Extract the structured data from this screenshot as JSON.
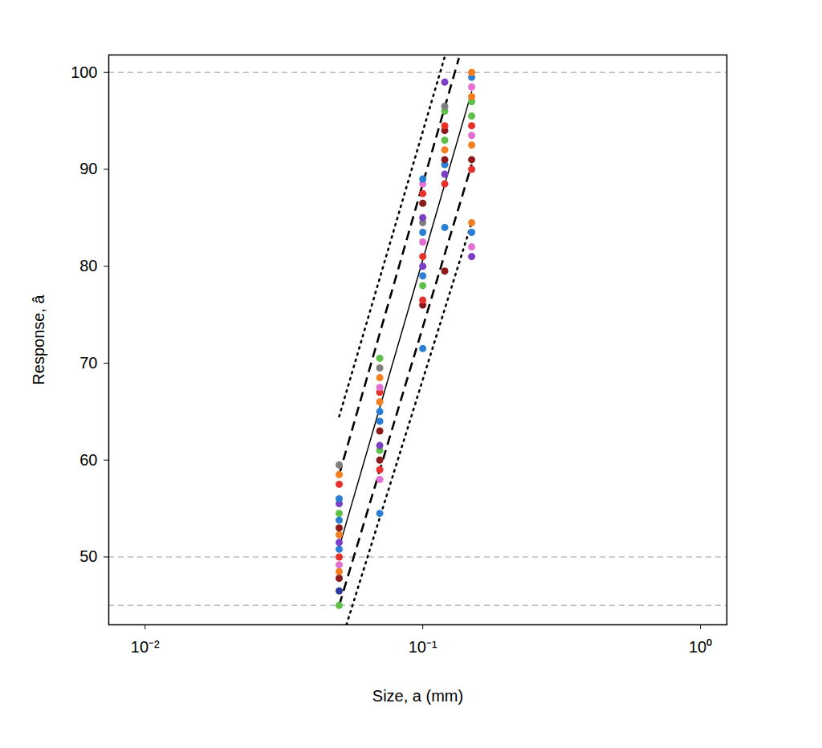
{
  "chart_data": {
    "type": "scatter",
    "x_label": "Size, a (mm)",
    "y_label": "Response, â",
    "log": "x",
    "xlim": [
      0.0074,
      1.245
    ],
    "ylim": [
      43,
      101.8
    ],
    "xticks": [
      {
        "value": 0.01,
        "label": "10⁻²"
      },
      {
        "value": 0.1,
        "label": "10⁻¹"
      },
      {
        "value": 1,
        "label": "10⁰"
      }
    ],
    "yticks": [
      50,
      60,
      70,
      80,
      90,
      100
    ],
    "hlines": [
      45,
      50,
      100
    ],
    "points": {
      "marker": "circle",
      "x": [
        0.05,
        0.05,
        0.05,
        0.05,
        0.05,
        0.05,
        0.05,
        0.05,
        0.05,
        0.05,
        0.05,
        0.05,
        0.05,
        0.05,
        0.05,
        0.05,
        0.05,
        0.07,
        0.07,
        0.07,
        0.07,
        0.07,
        0.07,
        0.07,
        0.07,
        0.07,
        0.07,
        0.07,
        0.07,
        0.07,
        0.07,
        0.07,
        0.1,
        0.1,
        0.1,
        0.1,
        0.1,
        0.1,
        0.1,
        0.1,
        0.1,
        0.1,
        0.1,
        0.1,
        0.1,
        0.1,
        0.1,
        0.12,
        0.12,
        0.12,
        0.12,
        0.12,
        0.12,
        0.12,
        0.12,
        0.12,
        0.12,
        0.12,
        0.12,
        0.12,
        0.15,
        0.15,
        0.15,
        0.15,
        0.15,
        0.15,
        0.15,
        0.15,
        0.15,
        0.15,
        0.15,
        0.15,
        0.15,
        0.15,
        0.15
      ],
      "values": [
        45,
        46.5,
        47.8,
        48.5,
        49.2,
        50,
        50.8,
        51.5,
        52.3,
        53,
        53.8,
        54.5,
        55.5,
        56,
        57.5,
        58.5,
        59.5,
        54.5,
        58,
        59,
        60,
        61,
        61.5,
        63,
        64,
        65,
        66,
        67,
        67.5,
        68.5,
        69.5,
        70.5,
        71.5,
        76,
        76.5,
        78,
        79,
        80,
        81,
        82.5,
        83.5,
        84.5,
        85,
        86.5,
        87.5,
        88.5,
        89,
        79.5,
        84,
        88.5,
        89.5,
        90.5,
        91,
        92,
        93,
        94,
        94.5,
        96,
        96.5,
        99,
        81,
        82,
        83.5,
        84.5,
        90,
        91,
        92.5,
        93.5,
        94.5,
        95.5,
        97,
        97.5,
        98.5,
        99.5,
        100
      ],
      "colors": [
        "#5cc04a",
        "#2b3a9b",
        "#8b1a1a",
        "#f57f20",
        "#e26fd1",
        "#e8312a",
        "#2a7fd4",
        "#7a3fc4",
        "#f57f20",
        "#8b1a1a",
        "#2a7fd4",
        "#5cc04a",
        "#7a3fc4",
        "#2a7fd4",
        "#e8312a",
        "#f57f20",
        "#808080",
        "#2a7fd4",
        "#e26fd1",
        "#e8312a",
        "#8b1a1a",
        "#5cc04a",
        "#7a3fc4",
        "#8b1a1a",
        "#2a7fd4",
        "#2a7fd4",
        "#f57f20",
        "#e8312a",
        "#e26fd1",
        "#f57f20",
        "#808080",
        "#5cc04a",
        "#2a7fd4",
        "#8b1a1a",
        "#e8312a",
        "#5cc04a",
        "#2a7fd4",
        "#7a3fc4",
        "#e8312a",
        "#e26fd1",
        "#2a7fd4",
        "#808080",
        "#7a3fc4",
        "#8b1a1a",
        "#e8312a",
        "#e26fd1",
        "#2a7fd4",
        "#8b1a1a",
        "#2a7fd4",
        "#e8312a",
        "#7a3fc4",
        "#2a7fd4",
        "#8b1a1a",
        "#f57f20",
        "#5cc04a",
        "#8b1a1a",
        "#e8312a",
        "#5cc04a",
        "#808080",
        "#7a3fc4",
        "#7a3fc4",
        "#e26fd1",
        "#2a7fd4",
        "#f57f20",
        "#e8312a",
        "#8b1a1a",
        "#f57f20",
        "#e26fd1",
        "#e8312a",
        "#5cc04a",
        "#5cc04a",
        "#f57f20",
        "#e26fd1",
        "#2a7fd4",
        "#f57f20"
      ]
    },
    "lines": [
      {
        "type": "line",
        "line_style": "solid",
        "color": "#000000",
        "x": [
          0.05,
          0.15
        ],
        "values": [
          51,
          98
        ]
      },
      {
        "type": "line",
        "line_style": "dashed",
        "color": "#000000",
        "x": [
          0.05,
          0.135
        ],
        "values": [
          58.5,
          101.5
        ]
      },
      {
        "type": "line",
        "line_style": "dashed",
        "color": "#000000",
        "x": [
          0.05,
          0.15
        ],
        "values": [
          45,
          90.5
        ]
      },
      {
        "type": "line",
        "line_style": "dotted",
        "color": "#000000",
        "x": [
          0.05,
          0.1205
        ],
        "values": [
          64.5,
          101.8
        ]
      },
      {
        "type": "line",
        "line_style": "dotted",
        "color": "#000000",
        "x": [
          0.0531,
          0.15
        ],
        "values": [
          43,
          84.5
        ]
      }
    ]
  }
}
